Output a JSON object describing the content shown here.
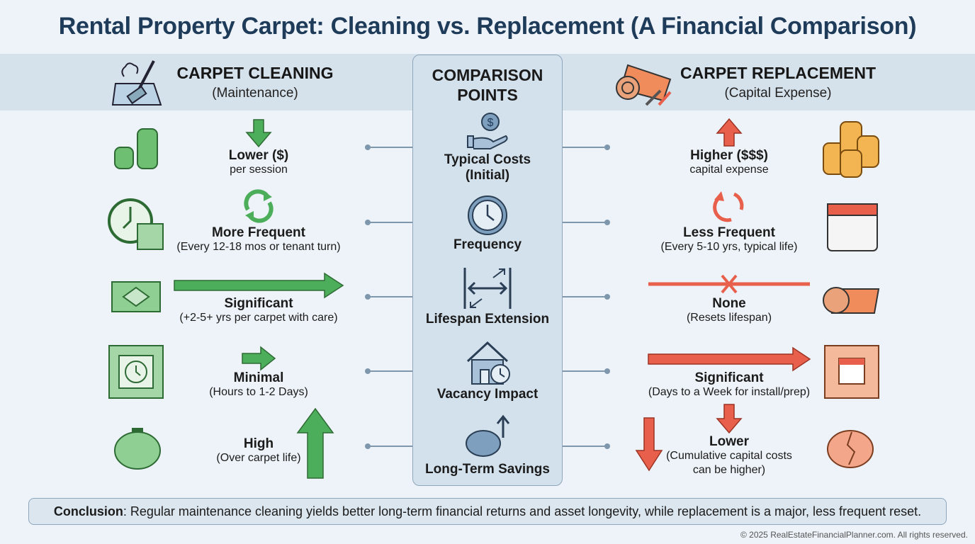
{
  "title": "Rental Property Carpet: Cleaning vs. Replacement (A Financial Comparison)",
  "left_header": {
    "title": "CARPET CLEANING",
    "subtitle": "(Maintenance)"
  },
  "right_header": {
    "title": "CARPET REPLACEMENT",
    "subtitle": "(Capital Expense)"
  },
  "center": {
    "title_line1": "COMPARISON",
    "title_line2": "POINTS",
    "points": [
      {
        "label1": "Typical Costs",
        "label2": "(Initial)",
        "icon": "hand-dollar-icon"
      },
      {
        "label1": "Frequency",
        "icon": "clock-icon"
      },
      {
        "label1": "Lifespan Extension",
        "icon": "expand-arrows-icon"
      },
      {
        "label1": "Vacancy Impact",
        "icon": "house-clock-icon"
      },
      {
        "label1": "Long-Term Savings",
        "icon": "piggy-bank-up-icon"
      }
    ]
  },
  "cleaning": [
    {
      "main": "Lower ($)",
      "sub": "per session",
      "indicator": "arrow-down"
    },
    {
      "main": "More Frequent",
      "sub": "(Every 12-18 mos or tenant turn)",
      "indicator": "cycle"
    },
    {
      "main": "Significant",
      "sub": "(+2-5+ yrs per carpet with care)",
      "indicator": "long-arrow-right"
    },
    {
      "main": "Minimal",
      "sub": "(Hours to 1-2 Days)",
      "indicator": "short-arrow-right"
    },
    {
      "main": "High",
      "sub": "(Over carpet life)",
      "indicator": "arrow-up"
    }
  ],
  "replacement": [
    {
      "main": "Higher ($$$)",
      "sub": "capital expense",
      "indicator": "arrow-up"
    },
    {
      "main": "Less Frequent",
      "sub": "(Every 5-10 yrs, typical life)",
      "indicator": "broken-cycle"
    },
    {
      "main": "None",
      "sub": "(Resets lifespan)",
      "indicator": "crossed-line"
    },
    {
      "main": "Significant",
      "sub": "(Days to a Week for install/prep)",
      "indicator": "long-arrow-right"
    },
    {
      "main": "Lower",
      "sub": "(Cumulative capital costs",
      "sub2": "can be higher)",
      "indicator": "arrow-down"
    }
  ],
  "conclusion": {
    "label": "Conclusion",
    "text": ": Regular maintenance cleaning yields better long-term financial returns and asset longevity, while replacement is a major, less frequent reset."
  },
  "copyright": "© 2025 RealEstateFinancialPlanner.com. All rights reserved.",
  "colors": {
    "title": "#1f3b5a",
    "green": "#4cae5a",
    "red": "#e8604c",
    "band": "#d5e1eb",
    "panel": "#d3e1ec"
  }
}
